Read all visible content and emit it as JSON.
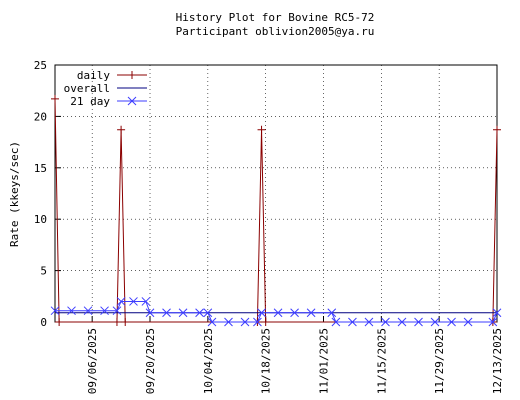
{
  "chart_data": {
    "type": "line",
    "title": "History Plot for Bovine RC5-72",
    "subtitle": "Participant oblivion2005@ya.ru",
    "y_label": "Rate (kkeys/sec)",
    "xlim": [
      "2025-08-28",
      "2025-12-13"
    ],
    "xticks": [
      {
        "value": "2025-09-06",
        "label": "09/06/2025"
      },
      {
        "value": "2025-09-20",
        "label": "09/20/2025"
      },
      {
        "value": "2025-10-04",
        "label": "10/04/2025"
      },
      {
        "value": "2025-10-18",
        "label": "10/18/2025"
      },
      {
        "value": "2025-11-01",
        "label": "11/01/2025"
      },
      {
        "value": "2025-11-15",
        "label": "11/15/2025"
      },
      {
        "value": "2025-11-29",
        "label": "11/29/2025"
      },
      {
        "value": "2025-12-13",
        "label": "12/13/2025"
      }
    ],
    "ylim": [
      0,
      25
    ],
    "yticks": [
      0,
      5,
      10,
      15,
      20,
      25
    ],
    "grid": true,
    "legend": "top-left",
    "series": [
      {
        "name": "daily",
        "color": "#8b0000",
        "marker": "plus",
        "x": [
          "2025-08-28",
          "2025-08-29",
          "2025-09-12",
          "2025-09-13",
          "2025-09-14",
          "2025-10-16",
          "2025-10-17",
          "2025-10-18",
          "2025-12-12",
          "2025-12-13"
        ],
        "values": [
          21.7,
          0,
          0,
          18.7,
          0,
          0,
          18.7,
          0,
          0,
          18.7
        ]
      },
      {
        "name": "overall",
        "color": "#000080",
        "marker": "none",
        "x": [
          "2025-08-28",
          "2025-12-13"
        ],
        "values": [
          0.9,
          0.9
        ]
      },
      {
        "name": "21 day",
        "color": "#3c3cff",
        "marker": "cross",
        "x": [
          "2025-08-28",
          "2025-09-01",
          "2025-09-05",
          "2025-09-09",
          "2025-09-12",
          "2025-09-13",
          "2025-09-16",
          "2025-09-19",
          "2025-09-20",
          "2025-09-24",
          "2025-09-28",
          "2025-10-02",
          "2025-10-04",
          "2025-10-05",
          "2025-10-09",
          "2025-10-13",
          "2025-10-16",
          "2025-10-17",
          "2025-10-21",
          "2025-10-25",
          "2025-10-29",
          "2025-11-03",
          "2025-11-04",
          "2025-11-08",
          "2025-11-12",
          "2025-11-16",
          "2025-11-20",
          "2025-11-24",
          "2025-11-28",
          "2025-12-02",
          "2025-12-06",
          "2025-12-12",
          "2025-12-13"
        ],
        "values": [
          1.1,
          1.1,
          1.1,
          1.1,
          1.1,
          2.0,
          2.0,
          2.0,
          0.9,
          0.9,
          0.9,
          0.9,
          0.9,
          0,
          0,
          0,
          0,
          0.9,
          0.9,
          0.9,
          0.9,
          0.9,
          0,
          0,
          0,
          0,
          0,
          0,
          0,
          0,
          0,
          0,
          0.9
        ]
      }
    ]
  }
}
